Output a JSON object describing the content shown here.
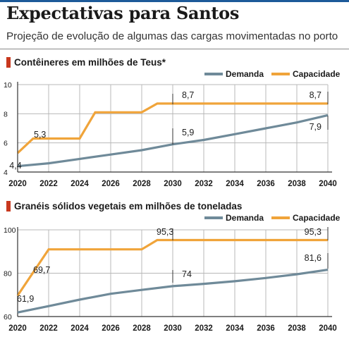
{
  "header": {
    "title": "Expectativas para Santos",
    "subtitle": "Projeção de evolução de algumas das cargas movimentadas no porto"
  },
  "colors": {
    "demanda": "#6f8a99",
    "capacidade": "#f0a43a",
    "marker": "#c8381e",
    "grid": "#b8b8b8",
    "axis": "#333333"
  },
  "chart_data": [
    {
      "type": "line",
      "title": "Contêineres em milhões de Teus*",
      "x": [
        2020,
        2022,
        2024,
        2026,
        2028,
        2030,
        2032,
        2034,
        2036,
        2038,
        2040
      ],
      "x_ticks": [
        "2020",
        "2022",
        "2024",
        "2026",
        "2028",
        "2030",
        "2032",
        "2034",
        "2036",
        "2038",
        "2040"
      ],
      "y_ticks": [
        "4",
        "6",
        "8",
        "10"
      ],
      "ylim": [
        4,
        10
      ],
      "grid": true,
      "legend_position": "top-right",
      "series": [
        {
          "name": "Demanda",
          "points": [
            [
              2020,
              4.4
            ],
            [
              2022,
              4.6
            ],
            [
              2024,
              4.9
            ],
            [
              2026,
              5.2
            ],
            [
              2028,
              5.5
            ],
            [
              2030,
              5.9
            ],
            [
              2032,
              6.2
            ],
            [
              2034,
              6.6
            ],
            [
              2036,
              7.0
            ],
            [
              2038,
              7.4
            ],
            [
              2040,
              7.9
            ]
          ]
        },
        {
          "name": "Capacidade",
          "points": [
            [
              2020,
              5.3
            ],
            [
              2021,
              6.3
            ],
            [
              2023,
              6.3
            ],
            [
              2024,
              6.3
            ],
            [
              2025,
              8.1
            ],
            [
              2028,
              8.1
            ],
            [
              2029,
              8.7
            ],
            [
              2040,
              8.7
            ]
          ]
        }
      ],
      "annotations": [
        {
          "text": "4,4",
          "x": 2020,
          "y": 4.4,
          "series": "Demanda"
        },
        {
          "text": "5,3",
          "x": 2020,
          "y": 5.3,
          "series": "Capacidade"
        },
        {
          "text": "8,7",
          "x": 2030,
          "y": 8.7,
          "series": "Capacidade"
        },
        {
          "text": "5,9",
          "x": 2030,
          "y": 5.9,
          "series": "Demanda"
        },
        {
          "text": "8,7",
          "x": 2040,
          "y": 8.7,
          "series": "Capacidade"
        },
        {
          "text": "7,9",
          "x": 2040,
          "y": 7.9,
          "series": "Demanda"
        }
      ]
    },
    {
      "type": "line",
      "title": "Granéis sólidos vegetais em milhões de toneladas",
      "x": [
        2020,
        2022,
        2024,
        2026,
        2028,
        2030,
        2032,
        2034,
        2036,
        2038,
        2040
      ],
      "x_ticks": [
        "2020",
        "2022",
        "2024",
        "2026",
        "2028",
        "2030",
        "2032",
        "2034",
        "2036",
        "2038",
        "2040"
      ],
      "y_ticks": [
        "60",
        "80",
        "100"
      ],
      "ylim": [
        60,
        100
      ],
      "grid": true,
      "legend_position": "top-right",
      "series": [
        {
          "name": "Demanda",
          "points": [
            [
              2020,
              61.9
            ],
            [
              2022,
              64.8
            ],
            [
              2024,
              67.8
            ],
            [
              2026,
              70.5
            ],
            [
              2028,
              72.3
            ],
            [
              2030,
              74.0
            ],
            [
              2032,
              75.1
            ],
            [
              2034,
              76.3
            ],
            [
              2036,
              77.8
            ],
            [
              2038,
              79.5
            ],
            [
              2040,
              81.6
            ]
          ]
        },
        {
          "name": "Capacidade",
          "points": [
            [
              2020,
              69.7
            ],
            [
              2022,
              91.0
            ],
            [
              2024,
              91.0
            ],
            [
              2026,
              91.0
            ],
            [
              2028,
              91.0
            ],
            [
              2029,
              95.3
            ],
            [
              2040,
              95.3
            ]
          ]
        }
      ],
      "annotations": [
        {
          "text": "69,7",
          "x": 2020,
          "y": 69.7,
          "series": "Capacidade"
        },
        {
          "text": "61,9",
          "x": 2020,
          "y": 61.9,
          "series": "Demanda"
        },
        {
          "text": "95,3",
          "x": 2030,
          "y": 95.3,
          "series": "Capacidade"
        },
        {
          "text": "74",
          "x": 2030,
          "y": 74.0,
          "series": "Demanda"
        },
        {
          "text": "95,3",
          "x": 2040,
          "y": 95.3,
          "series": "Capacidade"
        },
        {
          "text": "81,6",
          "x": 2040,
          "y": 81.6,
          "series": "Demanda"
        }
      ]
    }
  ]
}
